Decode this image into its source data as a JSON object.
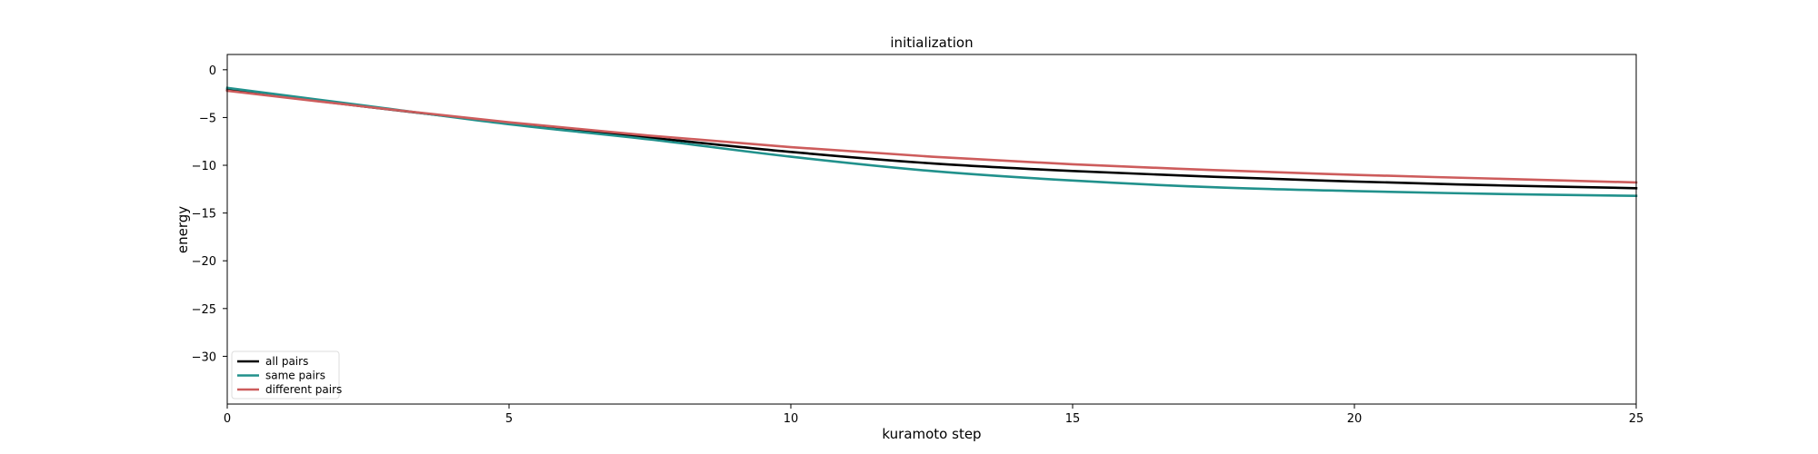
{
  "chart_data": {
    "type": "line",
    "title": "initialization",
    "xlabel": "kuramoto step",
    "ylabel": "energy",
    "xlim": [
      0,
      25
    ],
    "ylim": [
      -35,
      1.6
    ],
    "xticks": [
      0,
      5,
      10,
      15,
      20,
      25
    ],
    "yticks": [
      0,
      -5,
      -10,
      -15,
      -20,
      -25,
      -30
    ],
    "grid": false,
    "legend_position": "lower-left",
    "x": [
      0,
      2.5,
      5,
      7.5,
      10,
      12.5,
      15,
      17.5,
      20,
      22.5,
      25
    ],
    "series": [
      {
        "name": "all pairs",
        "color": "#000000",
        "values": [
          -2.1,
          -3.9,
          -5.6,
          -7.1,
          -8.6,
          -9.8,
          -10.6,
          -11.2,
          -11.7,
          -12.1,
          -12.4
        ]
      },
      {
        "name": "same pairs",
        "color": "#21918c",
        "values": [
          -1.9,
          -3.8,
          -5.7,
          -7.3,
          -9.1,
          -10.6,
          -11.6,
          -12.3,
          -12.7,
          -13.0,
          -13.2
        ]
      },
      {
        "name": "different pairs",
        "color": "#cd5c5c",
        "values": [
          -2.2,
          -3.9,
          -5.5,
          -6.9,
          -8.1,
          -9.1,
          -9.9,
          -10.5,
          -11.0,
          -11.4,
          -11.8
        ]
      }
    ]
  }
}
